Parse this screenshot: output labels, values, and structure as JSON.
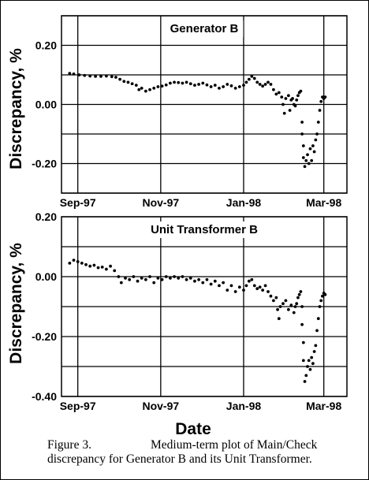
{
  "figure": {
    "xlabel": "Date",
    "ylabel": "Discrepancy, %",
    "caption_label": "Figure 3.",
    "caption_line1": "Medium-term plot of Main/Check",
    "caption_line2": "discrepancy for Generator B and its Unit Transformer."
  },
  "chart_data": [
    {
      "type": "scatter",
      "title": "Generator B",
      "xlabel": "",
      "ylabel": "Discrepancy, %",
      "xlim": [
        "1997-08-20",
        "1998-03-18"
      ],
      "ylim": [
        -0.3,
        0.3
      ],
      "y_ticks": [
        {
          "value": 0.2,
          "label": "0.20"
        },
        {
          "value": 0.0,
          "label": "0.00"
        },
        {
          "value": -0.2,
          "label": "-0.20"
        }
      ],
      "x_ticks": [
        {
          "value": "1997-09-01",
          "label": "Sep-97"
        },
        {
          "value": "1997-11-01",
          "label": "Nov-97"
        },
        {
          "value": "1998-01-01",
          "label": "Jan-98"
        },
        {
          "value": "1998-03-01",
          "label": "Mar-98"
        }
      ],
      "grid": true,
      "series": [
        {
          "points": [
            [
              "1997-08-26",
              0.105
            ],
            [
              "1997-08-29",
              0.103
            ],
            [
              "1997-09-02",
              0.1
            ],
            [
              "1997-09-06",
              0.098
            ],
            [
              "1997-09-10",
              0.096
            ],
            [
              "1997-09-14",
              0.095
            ],
            [
              "1997-09-18",
              0.095
            ],
            [
              "1997-09-22",
              0.096
            ],
            [
              "1997-09-26",
              0.094
            ],
            [
              "1997-09-29",
              0.092
            ],
            [
              "1997-10-02",
              0.085
            ],
            [
              "1997-10-05",
              0.078
            ],
            [
              "1997-10-08",
              0.075
            ],
            [
              "1997-10-11",
              0.07
            ],
            [
              "1997-10-14",
              0.065
            ],
            [
              "1997-10-16",
              0.05
            ],
            [
              "1997-10-18",
              0.055
            ],
            [
              "1997-10-21",
              0.045
            ],
            [
              "1997-10-24",
              0.05
            ],
            [
              "1997-10-27",
              0.055
            ],
            [
              "1997-10-30",
              0.06
            ],
            [
              "1997-11-02",
              0.062
            ],
            [
              "1997-11-05",
              0.066
            ],
            [
              "1997-11-08",
              0.072
            ],
            [
              "1997-11-11",
              0.075
            ],
            [
              "1997-11-14",
              0.074
            ],
            [
              "1997-11-17",
              0.072
            ],
            [
              "1997-11-20",
              0.075
            ],
            [
              "1997-11-23",
              0.07
            ],
            [
              "1997-11-26",
              0.065
            ],
            [
              "1997-11-29",
              0.068
            ],
            [
              "1997-12-02",
              0.072
            ],
            [
              "1997-12-05",
              0.066
            ],
            [
              "1997-12-08",
              0.06
            ],
            [
              "1997-12-11",
              0.065
            ],
            [
              "1997-12-14",
              0.055
            ],
            [
              "1997-12-17",
              0.06
            ],
            [
              "1997-12-20",
              0.068
            ],
            [
              "1997-12-23",
              0.063
            ],
            [
              "1997-12-26",
              0.055
            ],
            [
              "1997-12-29",
              0.06
            ],
            [
              "1998-01-01",
              0.065
            ],
            [
              "1998-01-03",
              0.075
            ],
            [
              "1998-01-05",
              0.085
            ],
            [
              "1998-01-07",
              0.095
            ],
            [
              "1998-01-09",
              0.088
            ],
            [
              "1998-01-11",
              0.075
            ],
            [
              "1998-01-13",
              0.068
            ],
            [
              "1998-01-15",
              0.062
            ],
            [
              "1998-01-17",
              0.068
            ],
            [
              "1998-01-19",
              0.075
            ],
            [
              "1998-01-21",
              0.068
            ],
            [
              "1998-01-23",
              0.05
            ],
            [
              "1998-01-25",
              0.035
            ],
            [
              "1998-01-27",
              0.04
            ],
            [
              "1998-01-29",
              0.025
            ],
            [
              "1998-01-30",
              0.0
            ],
            [
              "1998-01-31",
              -0.03
            ],
            [
              "1998-02-01",
              0.02
            ],
            [
              "1998-02-03",
              0.03
            ],
            [
              "1998-02-04",
              -0.02
            ],
            [
              "1998-02-05",
              0.015
            ],
            [
              "1998-02-06",
              0.02
            ],
            [
              "1998-02-07",
              0.0
            ],
            [
              "1998-02-08",
              -0.005
            ],
            [
              "1998-02-09",
              0.015
            ],
            [
              "1998-02-10",
              0.03
            ],
            [
              "1998-02-11",
              0.04
            ],
            [
              "1998-02-12",
              0.045
            ],
            [
              "1998-02-13",
              -0.06
            ],
            [
              "1998-02-13",
              -0.1
            ],
            [
              "1998-02-14",
              -0.14
            ],
            [
              "1998-02-14",
              -0.18
            ],
            [
              "1998-02-15",
              -0.21
            ],
            [
              "1998-02-16",
              -0.19
            ],
            [
              "1998-02-17",
              -0.17
            ],
            [
              "1998-02-18",
              -0.2
            ],
            [
              "1998-02-19",
              -0.15
            ],
            [
              "1998-02-20",
              -0.19
            ],
            [
              "1998-02-21",
              -0.14
            ],
            [
              "1998-02-22",
              -0.16
            ],
            [
              "1998-02-23",
              -0.12
            ],
            [
              "1998-02-24",
              -0.1
            ],
            [
              "1998-02-25",
              -0.06
            ],
            [
              "1998-02-26",
              -0.02
            ],
            [
              "1998-02-27",
              0.01
            ],
            [
              "1998-02-28",
              0.025
            ],
            [
              "1998-03-01",
              0.02
            ],
            [
              "1998-03-02",
              0.025
            ]
          ]
        }
      ]
    },
    {
      "type": "scatter",
      "title": "Unit Transformer B",
      "xlabel": "Date",
      "ylabel": "Discrepancy, %",
      "xlim": [
        "1997-08-20",
        "1998-03-18"
      ],
      "ylim": [
        -0.4,
        0.2
      ],
      "y_ticks": [
        {
          "value": 0.2,
          "label": "0.20"
        },
        {
          "value": 0.0,
          "label": "0.00"
        },
        {
          "value": -0.2,
          "label": "-0.20"
        },
        {
          "value": -0.4,
          "label": "-0.40"
        }
      ],
      "x_ticks": [
        {
          "value": "1997-09-01",
          "label": "Sep-97"
        },
        {
          "value": "1997-11-01",
          "label": "Nov-97"
        },
        {
          "value": "1998-01-01",
          "label": "Jan-98"
        },
        {
          "value": "1998-03-01",
          "label": "Mar-98"
        }
      ],
      "grid": true,
      "series": [
        {
          "points": [
            [
              "1997-08-26",
              0.045
            ],
            [
              "1997-08-29",
              0.055
            ],
            [
              "1997-09-01",
              0.05
            ],
            [
              "1997-09-04",
              0.045
            ],
            [
              "1997-09-07",
              0.04
            ],
            [
              "1997-09-10",
              0.035
            ],
            [
              "1997-09-13",
              0.038
            ],
            [
              "1997-09-16",
              0.03
            ],
            [
              "1997-09-19",
              0.032
            ],
            [
              "1997-09-22",
              0.025
            ],
            [
              "1997-09-25",
              0.035
            ],
            [
              "1997-09-28",
              0.02
            ],
            [
              "1997-10-01",
              0.0
            ],
            [
              "1997-10-03",
              -0.02
            ],
            [
              "1997-10-06",
              -0.005
            ],
            [
              "1997-10-09",
              -0.01
            ],
            [
              "1997-10-12",
              0.0
            ],
            [
              "1997-10-15",
              -0.015
            ],
            [
              "1997-10-18",
              -0.005
            ],
            [
              "1997-10-21",
              -0.01
            ],
            [
              "1997-10-24",
              0.0
            ],
            [
              "1997-10-27",
              -0.02
            ],
            [
              "1997-10-30",
              -0.005
            ],
            [
              "1997-11-02",
              -0.01
            ],
            [
              "1997-11-05",
              0.0
            ],
            [
              "1997-11-08",
              -0.005
            ],
            [
              "1997-11-11",
              0.0
            ],
            [
              "1997-11-14",
              -0.005
            ],
            [
              "1997-11-17",
              0.0
            ],
            [
              "1997-11-20",
              -0.01
            ],
            [
              "1997-11-23",
              -0.005
            ],
            [
              "1997-11-26",
              -0.015
            ],
            [
              "1997-11-29",
              -0.01
            ],
            [
              "1997-12-02",
              -0.02
            ],
            [
              "1997-12-05",
              -0.01
            ],
            [
              "1997-12-08",
              -0.025
            ],
            [
              "1997-12-11",
              -0.015
            ],
            [
              "1997-12-14",
              -0.03
            ],
            [
              "1997-12-17",
              -0.02
            ],
            [
              "1997-12-20",
              -0.045
            ],
            [
              "1997-12-23",
              -0.03
            ],
            [
              "1997-12-26",
              -0.05
            ],
            [
              "1997-12-29",
              -0.035
            ],
            [
              "1998-01-01",
              -0.045
            ],
            [
              "1998-01-03",
              -0.03
            ],
            [
              "1998-01-05",
              -0.015
            ],
            [
              "1998-01-07",
              -0.01
            ],
            [
              "1998-01-09",
              -0.03
            ],
            [
              "1998-01-11",
              -0.04
            ],
            [
              "1998-01-13",
              -0.035
            ],
            [
              "1998-01-15",
              -0.045
            ],
            [
              "1998-01-17",
              -0.03
            ],
            [
              "1998-01-19",
              -0.05
            ],
            [
              "1998-01-21",
              -0.065
            ],
            [
              "1998-01-23",
              -0.08
            ],
            [
              "1998-01-25",
              -0.07
            ],
            [
              "1998-01-26",
              -0.11
            ],
            [
              "1998-01-27",
              -0.14
            ],
            [
              "1998-01-28",
              -0.1
            ],
            [
              "1998-01-30",
              -0.09
            ],
            [
              "1998-02-01",
              -0.08
            ],
            [
              "1998-02-03",
              -0.11
            ],
            [
              "1998-02-05",
              -0.095
            ],
            [
              "1998-02-07",
              -0.12
            ],
            [
              "1998-02-08",
              -0.1
            ],
            [
              "1998-02-09",
              -0.09
            ],
            [
              "1998-02-10",
              -0.07
            ],
            [
              "1998-02-11",
              -0.06
            ],
            [
              "1998-02-12",
              -0.05
            ],
            [
              "1998-02-13",
              -0.1
            ],
            [
              "1998-02-13",
              -0.16
            ],
            [
              "1998-02-14",
              -0.22
            ],
            [
              "1998-02-14",
              -0.28
            ],
            [
              "1998-02-15",
              -0.35
            ],
            [
              "1998-02-16",
              -0.33
            ],
            [
              "1998-02-17",
              -0.3
            ],
            [
              "1998-02-18",
              -0.28
            ],
            [
              "1998-02-19",
              -0.31
            ],
            [
              "1998-02-20",
              -0.27
            ],
            [
              "1998-02-21",
              -0.29
            ],
            [
              "1998-02-22",
              -0.25
            ],
            [
              "1998-02-23",
              -0.23
            ],
            [
              "1998-02-24",
              -0.18
            ],
            [
              "1998-02-25",
              -0.14
            ],
            [
              "1998-02-26",
              -0.1
            ],
            [
              "1998-02-27",
              -0.08
            ],
            [
              "1998-02-28",
              -0.065
            ],
            [
              "1998-03-01",
              -0.055
            ],
            [
              "1998-03-02",
              -0.06
            ]
          ]
        }
      ]
    }
  ]
}
